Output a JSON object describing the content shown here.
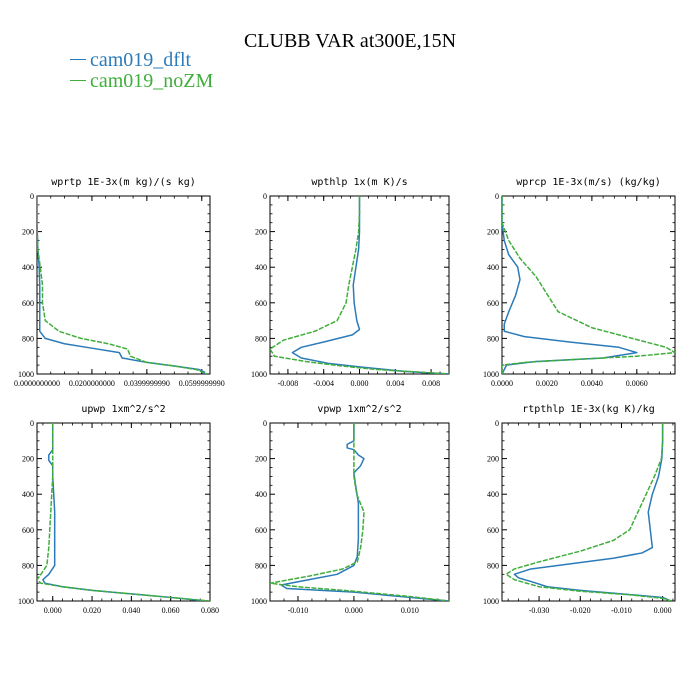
{
  "title": "CLUBB VAR at300E,15N",
  "legend": [
    {
      "name": "cam019_dflt",
      "color": "#2b7bba"
    },
    {
      "name": "cam019_noZM",
      "color": "#3fae3a"
    }
  ],
  "chart_data": [
    {
      "type": "line",
      "title": "wprtp  1E-3x(m kg)/(s kg)",
      "xlim": [
        0.0,
        0.063
      ],
      "ylim": [
        1000,
        0
      ],
      "xticks": [
        0.0,
        0.02,
        0.04,
        0.06
      ],
      "xtick_labels": [
        "0.0000000000",
        "0.0200000000",
        "0.0399999990",
        "0.0599999990"
      ],
      "yticks": [
        0,
        200,
        400,
        600,
        800,
        1000
      ],
      "ytick_labels": [
        "0",
        "200",
        "400",
        "600",
        "800",
        "1000"
      ],
      "series": [
        {
          "name": "cam019_dflt",
          "points": [
            [
              0.0,
              0
            ],
            [
              0.0,
              150
            ],
            [
              0.0003,
              300
            ],
            [
              0.0008,
              400
            ],
            [
              0.001,
              500
            ],
            [
              0.001,
              600
            ],
            [
              0.001,
              700
            ],
            [
              0.001,
              760
            ],
            [
              0.003,
              800
            ],
            [
              0.01,
              830
            ],
            [
              0.02,
              855
            ],
            [
              0.03,
              880
            ],
            [
              0.031,
              910
            ],
            [
              0.04,
              935
            ],
            [
              0.05,
              955
            ],
            [
              0.059,
              975
            ],
            [
              0.061,
              990
            ],
            [
              0.061,
              1000
            ]
          ]
        },
        {
          "name": "cam019_noZM",
          "points": [
            [
              0.0,
              0
            ],
            [
              0.0,
              150
            ],
            [
              0.0003,
              300
            ],
            [
              0.0012,
              400
            ],
            [
              0.002,
              500
            ],
            [
              0.002,
              600
            ],
            [
              0.003,
              700
            ],
            [
              0.008,
              760
            ],
            [
              0.016,
              800
            ],
            [
              0.026,
              830
            ],
            [
              0.033,
              860
            ],
            [
              0.034,
              900
            ],
            [
              0.04,
              935
            ],
            [
              0.05,
              955
            ],
            [
              0.058,
              975
            ],
            [
              0.062,
              1000
            ]
          ]
        }
      ]
    },
    {
      "type": "line",
      "title": "wpthlp  1x(m K)/s",
      "xlim": [
        -0.01,
        0.01
      ],
      "ylim": [
        1000,
        0
      ],
      "xticks": [
        -0.008,
        -0.004,
        0.0,
        0.004,
        0.008
      ],
      "xtick_labels": [
        "-0.008",
        "-0.004",
        "0.000",
        "0.004",
        "0.008"
      ],
      "yticks": [
        0,
        200,
        400,
        600,
        800,
        1000
      ],
      "ytick_labels": [
        "0",
        "200",
        "400",
        "600",
        "800",
        "1000"
      ],
      "series": [
        {
          "name": "cam019_dflt",
          "points": [
            [
              0.0,
              0
            ],
            [
              0.0,
              100
            ],
            [
              0.0,
              200
            ],
            [
              -0.0001,
              300
            ],
            [
              -0.0004,
              400
            ],
            [
              -0.0007,
              500
            ],
            [
              -0.0006,
              600
            ],
            [
              -0.0003,
              700
            ],
            [
              0.0,
              750
            ],
            [
              -0.0008,
              780
            ],
            [
              -0.004,
              820
            ],
            [
              -0.0065,
              850
            ],
            [
              -0.0075,
              880
            ],
            [
              -0.0065,
              910
            ],
            [
              -0.0035,
              940
            ],
            [
              0.0,
              960
            ],
            [
              0.005,
              985
            ],
            [
              0.01,
              1000
            ]
          ]
        },
        {
          "name": "cam019_noZM",
          "points": [
            [
              0.0,
              0
            ],
            [
              0.0,
              100
            ],
            [
              -0.0001,
              200
            ],
            [
              -0.0004,
              300
            ],
            [
              -0.0008,
              400
            ],
            [
              -0.0012,
              500
            ],
            [
              -0.0015,
              600
            ],
            [
              -0.0025,
              700
            ],
            [
              -0.005,
              760
            ],
            [
              -0.0085,
              810
            ],
            [
              -0.01,
              860
            ],
            [
              -0.0095,
              900
            ],
            [
              -0.006,
              930
            ],
            [
              -0.002,
              955
            ],
            [
              0.002,
              975
            ],
            [
              0.01,
              1000
            ]
          ]
        }
      ]
    },
    {
      "type": "line",
      "title": "wprcp  1E-3x(m/s) (kg/kg)",
      "xlim": [
        0.0,
        0.0077
      ],
      "ylim": [
        1000,
        0
      ],
      "xticks": [
        0.0,
        0.002,
        0.004,
        0.006
      ],
      "xtick_labels": [
        "0.0000",
        "0.0020",
        "0.0040",
        "0.0060"
      ],
      "yticks": [
        0,
        200,
        400,
        600,
        800,
        1000
      ],
      "ytick_labels": [
        "0",
        "200",
        "400",
        "600",
        "800",
        "1000"
      ],
      "series": [
        {
          "name": "cam019_dflt",
          "points": [
            [
              0.0,
              0
            ],
            [
              0.0,
              150
            ],
            [
              0.0001,
              250
            ],
            [
              0.0003,
              330
            ],
            [
              0.0007,
              400
            ],
            [
              0.0008,
              470
            ],
            [
              0.0006,
              560
            ],
            [
              0.0003,
              650
            ],
            [
              0.0001,
              720
            ],
            [
              0.0001,
              760
            ],
            [
              0.001,
              790
            ],
            [
              0.003,
              820
            ],
            [
              0.0052,
              850
            ],
            [
              0.006,
              880
            ],
            [
              0.0045,
              910
            ],
            [
              0.0015,
              930
            ],
            [
              0.0002,
              950
            ],
            [
              0.0,
              1000
            ]
          ]
        },
        {
          "name": "cam019_noZM",
          "points": [
            [
              0.0,
              0
            ],
            [
              0.0,
              150
            ],
            [
              0.0003,
              250
            ],
            [
              0.0008,
              350
            ],
            [
              0.0015,
              450
            ],
            [
              0.002,
              550
            ],
            [
              0.0025,
              650
            ],
            [
              0.004,
              740
            ],
            [
              0.0058,
              800
            ],
            [
              0.0073,
              850
            ],
            [
              0.0077,
              880
            ],
            [
              0.006,
              900
            ],
            [
              0.003,
              920
            ],
            [
              0.001,
              935
            ],
            [
              0.0,
              950
            ],
            [
              0.0,
              1000
            ]
          ]
        }
      ]
    },
    {
      "type": "line",
      "title": "upwp  1xm^2/s^2",
      "xlim": [
        -0.008,
        0.08
      ],
      "ylim": [
        1000,
        0
      ],
      "xticks": [
        0.0,
        0.02,
        0.04,
        0.06,
        0.08
      ],
      "xtick_labels": [
        "0.000",
        "0.020",
        "0.040",
        "0.060",
        "0.080"
      ],
      "yticks": [
        0,
        200,
        400,
        600,
        800,
        1000
      ],
      "ytick_labels": [
        "0",
        "200",
        "400",
        "600",
        "800",
        "1000"
      ],
      "series": [
        {
          "name": "cam019_dflt",
          "points": [
            [
              0.0,
              0
            ],
            [
              0.0,
              150
            ],
            [
              -0.002,
              180
            ],
            [
              -0.002,
              210
            ],
            [
              0.0,
              240
            ],
            [
              0.0,
              300
            ],
            [
              0.0005,
              400
            ],
            [
              0.001,
              500
            ],
            [
              0.001,
              600
            ],
            [
              0.001,
              700
            ],
            [
              0.001,
              800
            ],
            [
              -0.002,
              850
            ],
            [
              -0.005,
              880
            ],
            [
              -0.004,
              900
            ],
            [
              0.005,
              920
            ],
            [
              0.02,
              940
            ],
            [
              0.04,
              960
            ],
            [
              0.06,
              980
            ],
            [
              0.078,
              1000
            ]
          ]
        },
        {
          "name": "cam019_noZM",
          "points": [
            [
              0.0,
              0
            ],
            [
              0.0,
              150
            ],
            [
              0.0,
              300
            ],
            [
              -0.0005,
              400
            ],
            [
              -0.001,
              500
            ],
            [
              -0.0015,
              600
            ],
            [
              -0.002,
              700
            ],
            [
              -0.003,
              800
            ],
            [
              -0.006,
              850
            ],
            [
              -0.008,
              880
            ],
            [
              -0.006,
              900
            ],
            [
              0.005,
              920
            ],
            [
              0.02,
              940
            ],
            [
              0.04,
              960
            ],
            [
              0.06,
              980
            ],
            [
              0.08,
              1000
            ]
          ]
        }
      ]
    },
    {
      "type": "line",
      "title": "vpwp  1xm^2/s^2",
      "xlim": [
        -0.015,
        0.017
      ],
      "ylim": [
        1000,
        0
      ],
      "xticks": [
        -0.01,
        0.0,
        0.01
      ],
      "xtick_labels": [
        "-0.010",
        "0.000",
        "0.010"
      ],
      "yticks": [
        0,
        200,
        400,
        600,
        800,
        1000
      ],
      "ytick_labels": [
        "0",
        "200",
        "400",
        "600",
        "800",
        "1000"
      ],
      "series": [
        {
          "name": "cam019_dflt",
          "points": [
            [
              0.0,
              0
            ],
            [
              0.0,
              100
            ],
            [
              -0.0012,
              120
            ],
            [
              -0.0012,
              140
            ],
            [
              0.0,
              150
            ],
            [
              0.0008,
              180
            ],
            [
              0.0018,
              200
            ],
            [
              0.0012,
              240
            ],
            [
              0.0,
              280
            ],
            [
              0.0003,
              350
            ],
            [
              0.0008,
              450
            ],
            [
              0.0008,
              550
            ],
            [
              0.0008,
              650
            ],
            [
              0.0006,
              750
            ],
            [
              0.0,
              800
            ],
            [
              -0.003,
              850
            ],
            [
              -0.008,
              880
            ],
            [
              -0.013,
              910
            ],
            [
              -0.012,
              930
            ],
            [
              0.0,
              950
            ],
            [
              0.01,
              980
            ],
            [
              0.017,
              1000
            ]
          ]
        },
        {
          "name": "cam019_noZM",
          "points": [
            [
              0.0,
              0
            ],
            [
              0.0,
              100
            ],
            [
              0.0,
              200
            ],
            [
              0.0,
              300
            ],
            [
              0.0005,
              400
            ],
            [
              0.0018,
              500
            ],
            [
              0.0016,
              600
            ],
            [
              0.0012,
              700
            ],
            [
              0.0006,
              780
            ],
            [
              -0.002,
              820
            ],
            [
              -0.008,
              860
            ],
            [
              -0.015,
              900
            ],
            [
              -0.01,
              920
            ],
            [
              0.0,
              945
            ],
            [
              0.01,
              975
            ],
            [
              0.017,
              1000
            ]
          ]
        }
      ]
    },
    {
      "type": "line",
      "title": "rtpthlp  1E-3x(kg K)/kg",
      "xlim": [
        -0.039,
        0.003
      ],
      "ylim": [
        1000,
        0
      ],
      "xticks": [
        -0.03,
        -0.02,
        -0.01,
        0.0
      ],
      "xtick_labels": [
        "-0.030",
        "-0.020",
        "-0.010",
        "0.000"
      ],
      "yticks": [
        0,
        200,
        400,
        600,
        800,
        1000
      ],
      "ytick_labels": [
        "0",
        "200",
        "400",
        "600",
        "800",
        "1000"
      ],
      "series": [
        {
          "name": "cam019_dflt",
          "points": [
            [
              0.0,
              0
            ],
            [
              0.0,
              100
            ],
            [
              -0.0002,
              200
            ],
            [
              -0.001,
              300
            ],
            [
              -0.0025,
              400
            ],
            [
              -0.0035,
              500
            ],
            [
              -0.003,
              600
            ],
            [
              -0.0025,
              700
            ],
            [
              -0.005,
              730
            ],
            [
              -0.012,
              760
            ],
            [
              -0.022,
              790
            ],
            [
              -0.032,
              820
            ],
            [
              -0.036,
              850
            ],
            [
              -0.035,
              870
            ],
            [
              -0.032,
              890
            ],
            [
              -0.028,
              920
            ],
            [
              -0.02,
              940
            ],
            [
              -0.01,
              960
            ],
            [
              0.0,
              980
            ],
            [
              0.002,
              1000
            ]
          ]
        },
        {
          "name": "cam019_noZM",
          "points": [
            [
              0.0,
              0
            ],
            [
              0.0,
              100
            ],
            [
              -0.0003,
              200
            ],
            [
              -0.002,
              300
            ],
            [
              -0.004,
              400
            ],
            [
              -0.006,
              500
            ],
            [
              -0.008,
              600
            ],
            [
              -0.012,
              660
            ],
            [
              -0.02,
              720
            ],
            [
              -0.03,
              780
            ],
            [
              -0.036,
              820
            ],
            [
              -0.038,
              850
            ],
            [
              -0.036,
              880
            ],
            [
              -0.03,
              920
            ],
            [
              -0.02,
              945
            ],
            [
              -0.008,
              965
            ],
            [
              0.0,
              985
            ],
            [
              0.002,
              1000
            ]
          ]
        }
      ]
    }
  ]
}
